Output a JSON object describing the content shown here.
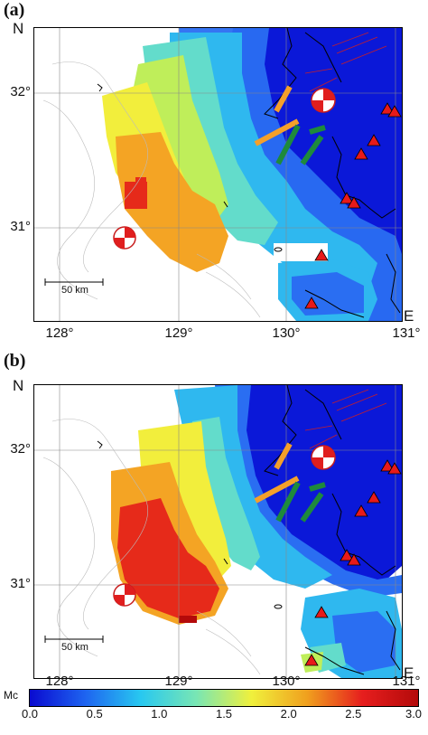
{
  "panels": [
    {
      "id": "a",
      "label": "(a)",
      "north": "N",
      "east": "E",
      "scale_label": "50 km",
      "lon_ticks": [
        "128°",
        "129°",
        "130°",
        "131°"
      ],
      "lat_ticks": [
        "32°",
        "31°"
      ]
    },
    {
      "id": "b",
      "label": "(b)",
      "north": "N",
      "east": "E",
      "scale_label": "50 km",
      "lon_ticks": [
        "128°",
        "129°",
        "130°",
        "131°"
      ],
      "lat_ticks": [
        "32°",
        "31°"
      ]
    }
  ],
  "colorbar": {
    "title": "Mc",
    "ticks": [
      "0.0",
      "0.5",
      "1.0",
      "1.5",
      "2.0",
      "2.5",
      "3.0"
    ],
    "range": [
      0,
      3
    ],
    "colors": [
      "#0a0ad0",
      "#1e64f0",
      "#28c8f0",
      "#78e6b4",
      "#f0f03c",
      "#f0a01e",
      "#e61e1e",
      "#b40a0a"
    ]
  },
  "map_colors": {
    "very_low": "#0b18d8",
    "low": "#2a6ef2",
    "mid_low": "#2fb8ef",
    "mid": "#63dccb",
    "mid_high": "#bfee5a",
    "high": "#f2ee3c",
    "orange": "#f4a424",
    "red": "#e62a1a",
    "fault_orange": "#f5a02a",
    "fault_green": "#1e8a3c",
    "volcano": "#e81a1a"
  }
}
